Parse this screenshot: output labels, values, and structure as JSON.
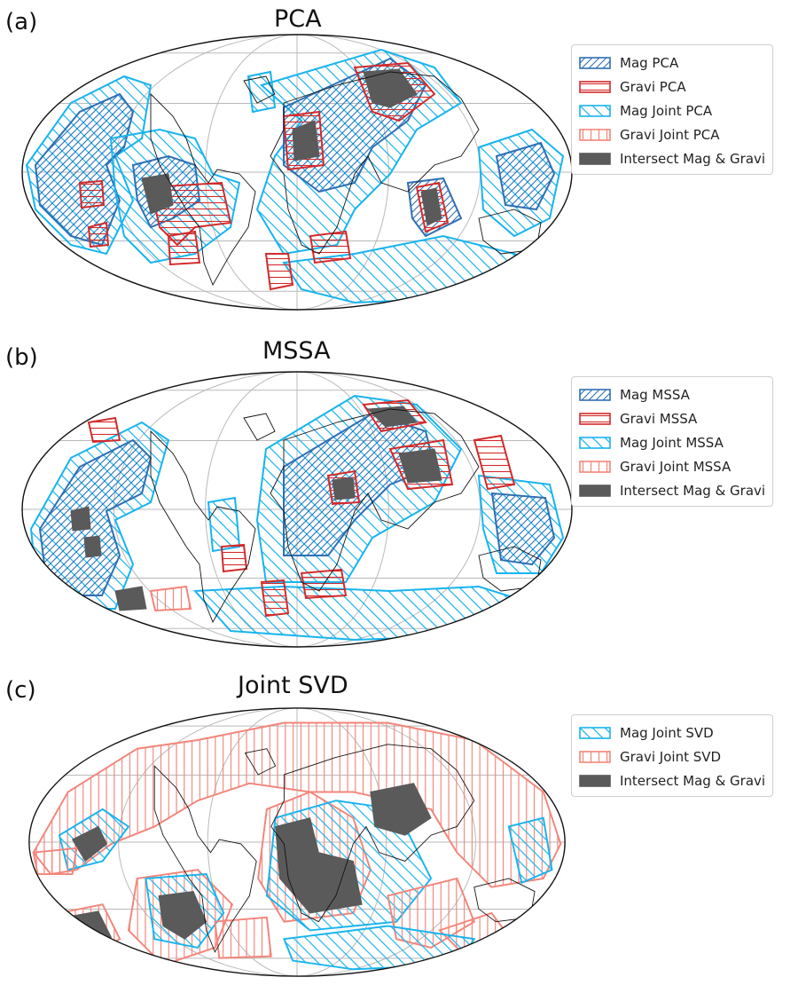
{
  "panels": [
    {
      "letter": "(a)",
      "title": "PCA",
      "legend": [
        {
          "label": "Mag PCA",
          "style": "mag"
        },
        {
          "label": "Gravi PCA",
          "style": "gravi"
        },
        {
          "label": "Mag Joint PCA",
          "style": "magjoint"
        },
        {
          "label": "Gravi Joint PCA",
          "style": "gravijoint"
        },
        {
          "label": "Intersect Mag & Gravi",
          "style": "intersect"
        }
      ]
    },
    {
      "letter": "(b)",
      "title": "MSSA",
      "legend": [
        {
          "label": "Mag MSSA",
          "style": "mag"
        },
        {
          "label": "Gravi MSSA",
          "style": "gravi"
        },
        {
          "label": "Mag Joint MSSA",
          "style": "magjoint"
        },
        {
          "label": "Gravi Joint MSSA",
          "style": "gravijoint"
        },
        {
          "label": "Intersect Mag & Gravi",
          "style": "intersect"
        }
      ]
    },
    {
      "letter": "(c)",
      "title": "Joint SVD",
      "legend": [
        {
          "label": "Mag Joint SVD",
          "style": "magjoint"
        },
        {
          "label": "Gravi Joint SVD",
          "style": "gravijoint"
        },
        {
          "label": "Intersect Mag & Gravi",
          "style": "intersect"
        }
      ]
    }
  ],
  "map_style": {
    "projection": "mollweide",
    "graticule": true,
    "colors": {
      "mag": "#2e6fb3",
      "gravi": "#d42a2a",
      "magjoint": "#18b4ef",
      "gravijoint": "#f3857a",
      "intersect": "#5a5a5a",
      "coast": "#111111",
      "grid": "#b9b9b9"
    }
  }
}
